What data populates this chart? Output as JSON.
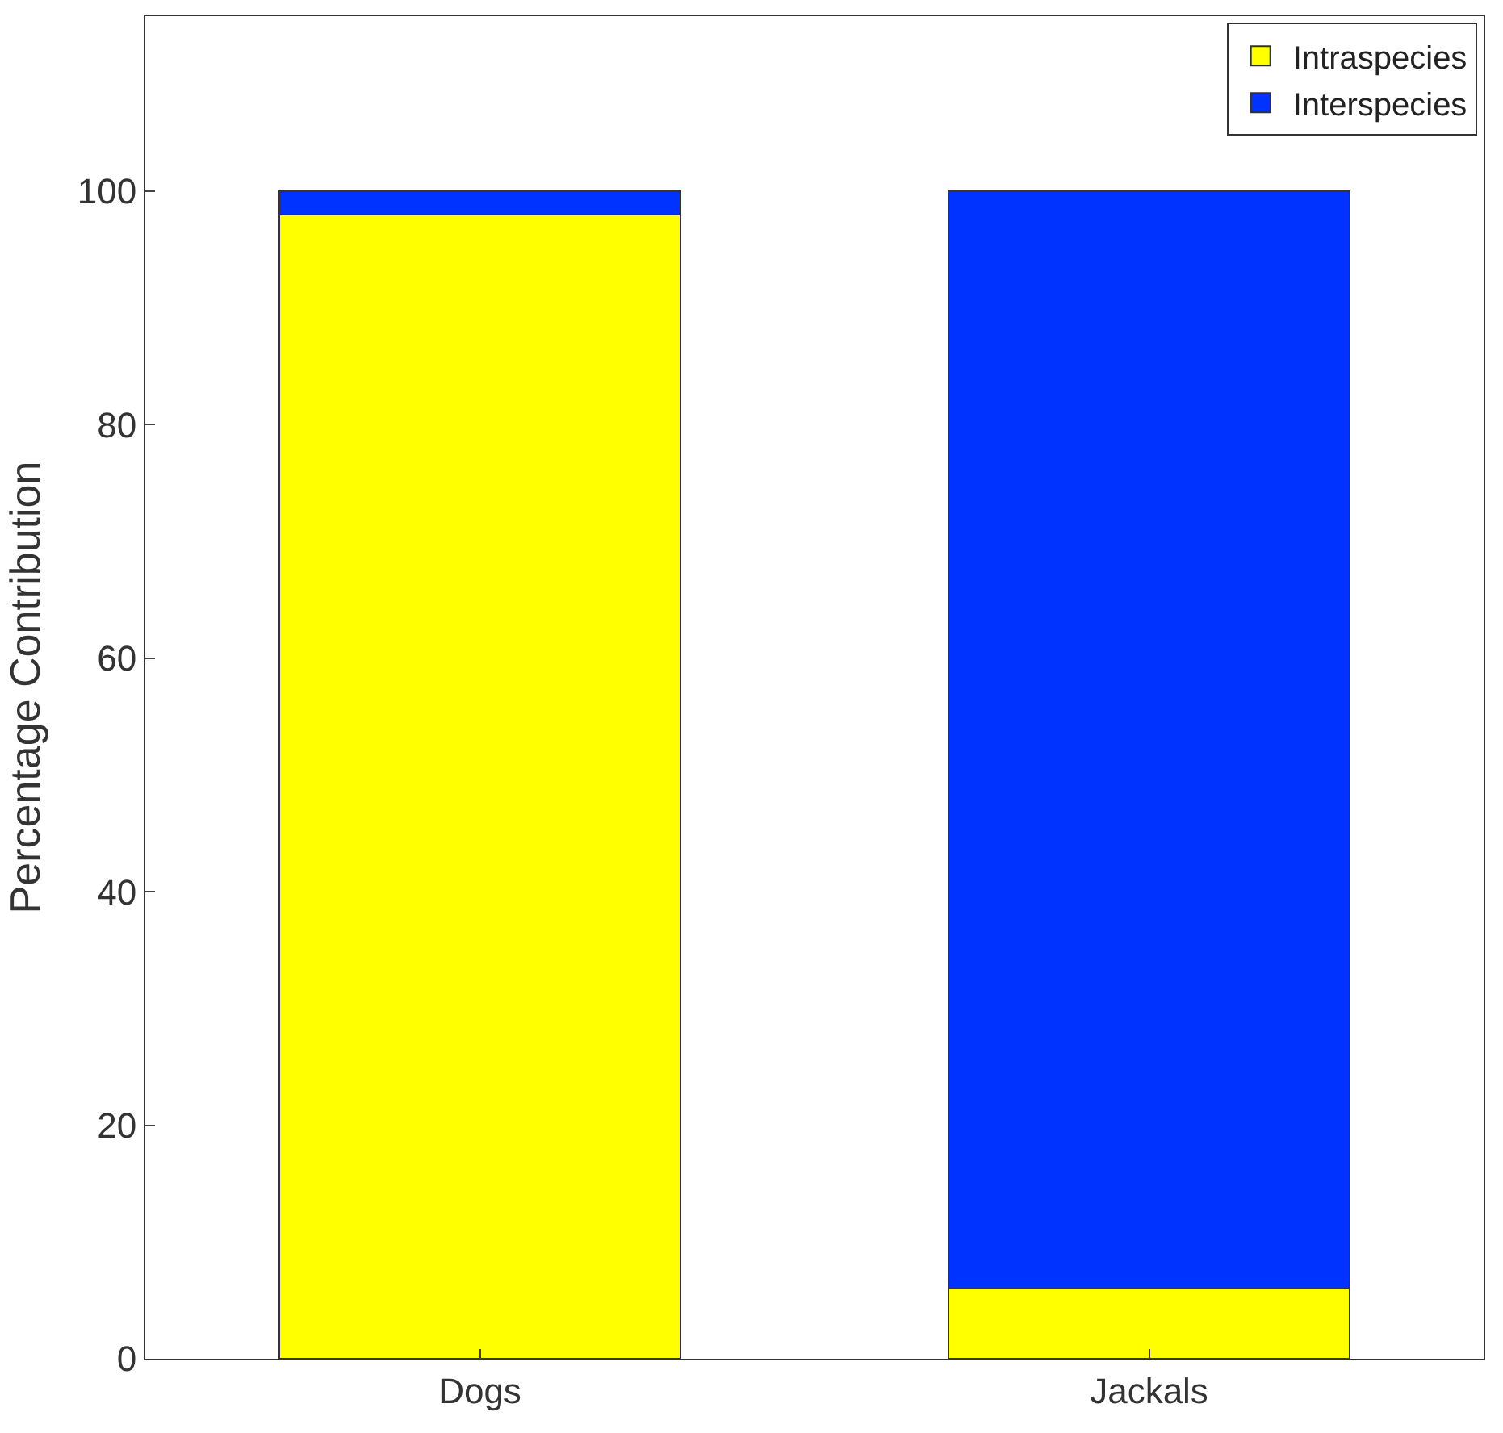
{
  "chart_data": {
    "type": "bar",
    "stacked": true,
    "ylabel": "Percentage Contribution",
    "categories": [
      "Dogs",
      "Jackals"
    ],
    "series": [
      {
        "name": "Intraspecies",
        "color": "#ffff00",
        "values": [
          98,
          6
        ]
      },
      {
        "name": "Interspecies",
        "color": "#0033ff",
        "values": [
          2,
          94
        ]
      }
    ],
    "ylim": [
      0,
      115
    ],
    "yticks": [
      0,
      20,
      40,
      60,
      80,
      100
    ],
    "legend": "top right"
  }
}
